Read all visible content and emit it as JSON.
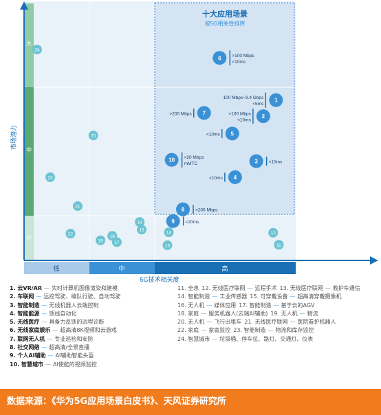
{
  "colors": {
    "dark_blue": "#1a6fb5",
    "mid_blue": "#3a91d6",
    "light_blue": "#b9d4ec",
    "green": "#5aa873",
    "teal_bubble": "#6cc4d2",
    "footer": "#f07c1e"
  },
  "chart_data": {
    "type": "scatter",
    "title": "十大应用场景",
    "subtitle": "按5G相关性排序",
    "xlabel": "5G技术相关度",
    "ylabel": "市场潜力",
    "x_categories": [
      "低",
      "中",
      "高"
    ],
    "y_categories": [
      "小",
      "中",
      "大"
    ],
    "top_points": [
      {
        "id": "1",
        "x": 2.86,
        "y": 2.8,
        "note": "100 Mbps~9.4 Gbps\n<5ms"
      },
      {
        "id": "2",
        "x": 2.77,
        "y": 2.55,
        "note": ">100 Mbps\n<10ms"
      },
      {
        "id": "3",
        "x": 2.72,
        "y": 1.85,
        "note": "<10ms"
      },
      {
        "id": "4",
        "x": 2.57,
        "y": 1.6,
        "note": "<10ms"
      },
      {
        "id": "5",
        "x": 2.55,
        "y": 2.28,
        "note": "<10ms"
      },
      {
        "id": "6",
        "x": 2.46,
        "y": 3.35,
        "note": ">100 Mbps\n<10ms"
      },
      {
        "id": "7",
        "x": 2.35,
        "y": 2.6,
        "note": ">200 Mbps"
      },
      {
        "id": "8",
        "x": 2.2,
        "y": 1.1,
        "note": ">200 Mbps"
      },
      {
        "id": "9",
        "x": 2.13,
        "y": 0.88,
        "note": "<20ms"
      },
      {
        "id": "10",
        "x": 2.12,
        "y": 1.87,
        "note": ">20 Mbps\nmMTC"
      }
    ],
    "other_points": [
      {
        "id": "11",
        "x": 2.88,
        "y": 0.35
      },
      {
        "id": "12",
        "x": 2.84,
        "y": 0.62
      },
      {
        "id": "13",
        "x": 2.09,
        "y": 0.34
      },
      {
        "id": "14",
        "x": 2.1,
        "y": 0.63
      },
      {
        "id": "15",
        "x": 1.8,
        "y": 0.69
      },
      {
        "id": "16",
        "x": 1.77,
        "y": 0.86
      },
      {
        "id": "17",
        "x": 1.42,
        "y": 0.41
      },
      {
        "id": "18",
        "x": 1.35,
        "y": 0.55
      },
      {
        "id": "19",
        "x": 1.17,
        "y": 0.45
      },
      {
        "id": "20",
        "x": 1.06,
        "y": 2.25
      },
      {
        "id": "21",
        "x": 0.82,
        "y": 1.15
      },
      {
        "id": "22",
        "x": 0.71,
        "y": 0.6
      },
      {
        "id": "23",
        "x": 0.4,
        "y": 1.6
      },
      {
        "id": "24",
        "x": 0.2,
        "y": 3.45
      }
    ]
  },
  "legend_left": [
    {
      "num": "1. 云VR/AR",
      "desc": "实时计算机图像渲染和建模"
    },
    {
      "num": "2. 车联网",
      "desc": "远控驾驶、编队行驶、自动驾驶"
    },
    {
      "num": "3. 智能制造",
      "desc": "无线机器人云端控制"
    },
    {
      "num": "4. 智能能源",
      "desc": "馈线自动化"
    },
    {
      "num": "5. 无线医疗",
      "desc": "具备力反馈的远程诊断"
    },
    {
      "num": "6. 无线家庭娱乐",
      "desc": "超高清8K视频和云游戏"
    },
    {
      "num": "7. 联网无人机",
      "desc": "专业巡检和安防"
    },
    {
      "num": "8. 社交网络",
      "desc": "超高清/全景直播"
    },
    {
      "num": "9. 个人AI辅助",
      "desc": "AI辅助智能头盔"
    },
    {
      "num": "10. 智慧城市",
      "desc": "AI使能的视频监控"
    }
  ],
  "legend_right": [
    [
      {
        "n": "11. 全息"
      },
      {
        "n": "12. 无线医疗联网",
        "d": "远程手术"
      },
      {
        "n": "13. 无线医疗联网",
        "d": "救护车通信"
      }
    ],
    [
      {
        "n": "14. 智能制造",
        "d": "工业传感器"
      },
      {
        "n": "15. 可穿戴设备",
        "d": "超高清穿戴摄像机"
      }
    ],
    [
      {
        "n": "16. 无人机",
        "d": "媒体应用"
      },
      {
        "n": "17. 智能制造",
        "d": "基于云的AGV"
      }
    ],
    [
      {
        "n": "18. 家庭",
        "d": "服务机器人(云端AI辅助)"
      },
      {
        "n": "19. 无人机",
        "d": "物流"
      }
    ],
    [
      {
        "n": "20. 无人机",
        "d": "飞行出租车"
      },
      {
        "n": "21. 无线医疗联网",
        "d": "医院看护机器人"
      }
    ],
    [
      {
        "n": "22. 家庭",
        "d": "家庭监控"
      },
      {
        "n": "23. 智能制造",
        "d": "物流和库存监控"
      }
    ],
    [
      {
        "n": "24. 智慧城市",
        "d": "垃圾桶、停车位、路灯、交通灯、仪表"
      }
    ]
  ],
  "footer": {
    "text": "数据来源：《华为5G应用场景白皮书》、天风证券研究所"
  }
}
